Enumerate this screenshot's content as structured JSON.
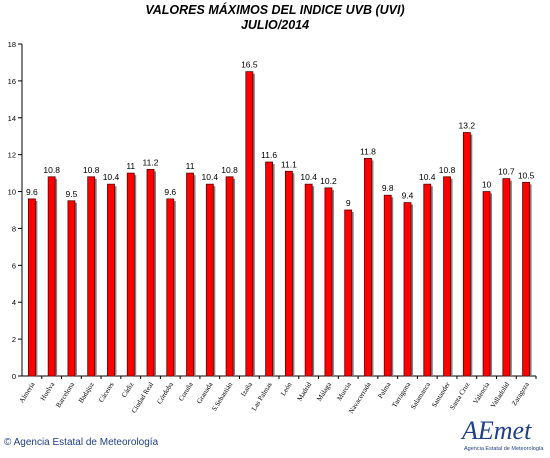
{
  "title": "VALORES MÁXIMOS DEL INDICE UVB (UVI)",
  "subtitle": "JULIO/2014",
  "footer": "© Agencia Estatal de Meteorología",
  "logo": {
    "text": "AEmet",
    "subtext": "Agencia Estatal de Meteorología"
  },
  "colors": {
    "bar": "#ff0000",
    "bar_edge": "#5a0000",
    "shadow": "#808080"
  },
  "chart_data": {
    "type": "bar",
    "categories": [
      "Almería",
      "Huelva",
      "Barcelona",
      "Badajoz",
      "Cáceres",
      "Cádiz",
      "Ciudad Real",
      "Córdoba",
      "Coruña",
      "Granada",
      "S.Sebastián",
      "Izaña",
      "Las Palmas",
      "León",
      "Madrid",
      "Málaga",
      "Murcia",
      "Navacerrada",
      "Palma",
      "Tarragona",
      "Salamanca",
      "Santander",
      "Santa Cruz",
      "Valencia",
      "Valladolid",
      "Zaragoza"
    ],
    "values": [
      9.6,
      10.8,
      9.5,
      10.8,
      10.4,
      11,
      11.2,
      9.6,
      11,
      10.4,
      10.8,
      16.5,
      11.6,
      11.1,
      10.4,
      10.2,
      9,
      11.8,
      9.8,
      9.4,
      10.4,
      10.8,
      13.2,
      10,
      10.7,
      10.5
    ],
    "data_labels": [
      "9.6",
      "10.8",
      "9.5",
      "10.8",
      "10.4",
      "11",
      "11.2",
      "9.6",
      "11",
      "10.4",
      "10.8",
      "16.5",
      "11.6",
      "11.1",
      "10.4",
      "10.2",
      "9",
      "11.8",
      "9.8",
      "9.4",
      "10.4",
      "10.8",
      "13.2",
      "10",
      "10.7",
      "10.5"
    ],
    "ylim": [
      0,
      18
    ],
    "yticks": [
      0,
      2,
      4,
      6,
      8,
      10,
      12,
      14,
      16,
      18
    ],
    "grid": false,
    "legend": "none"
  }
}
